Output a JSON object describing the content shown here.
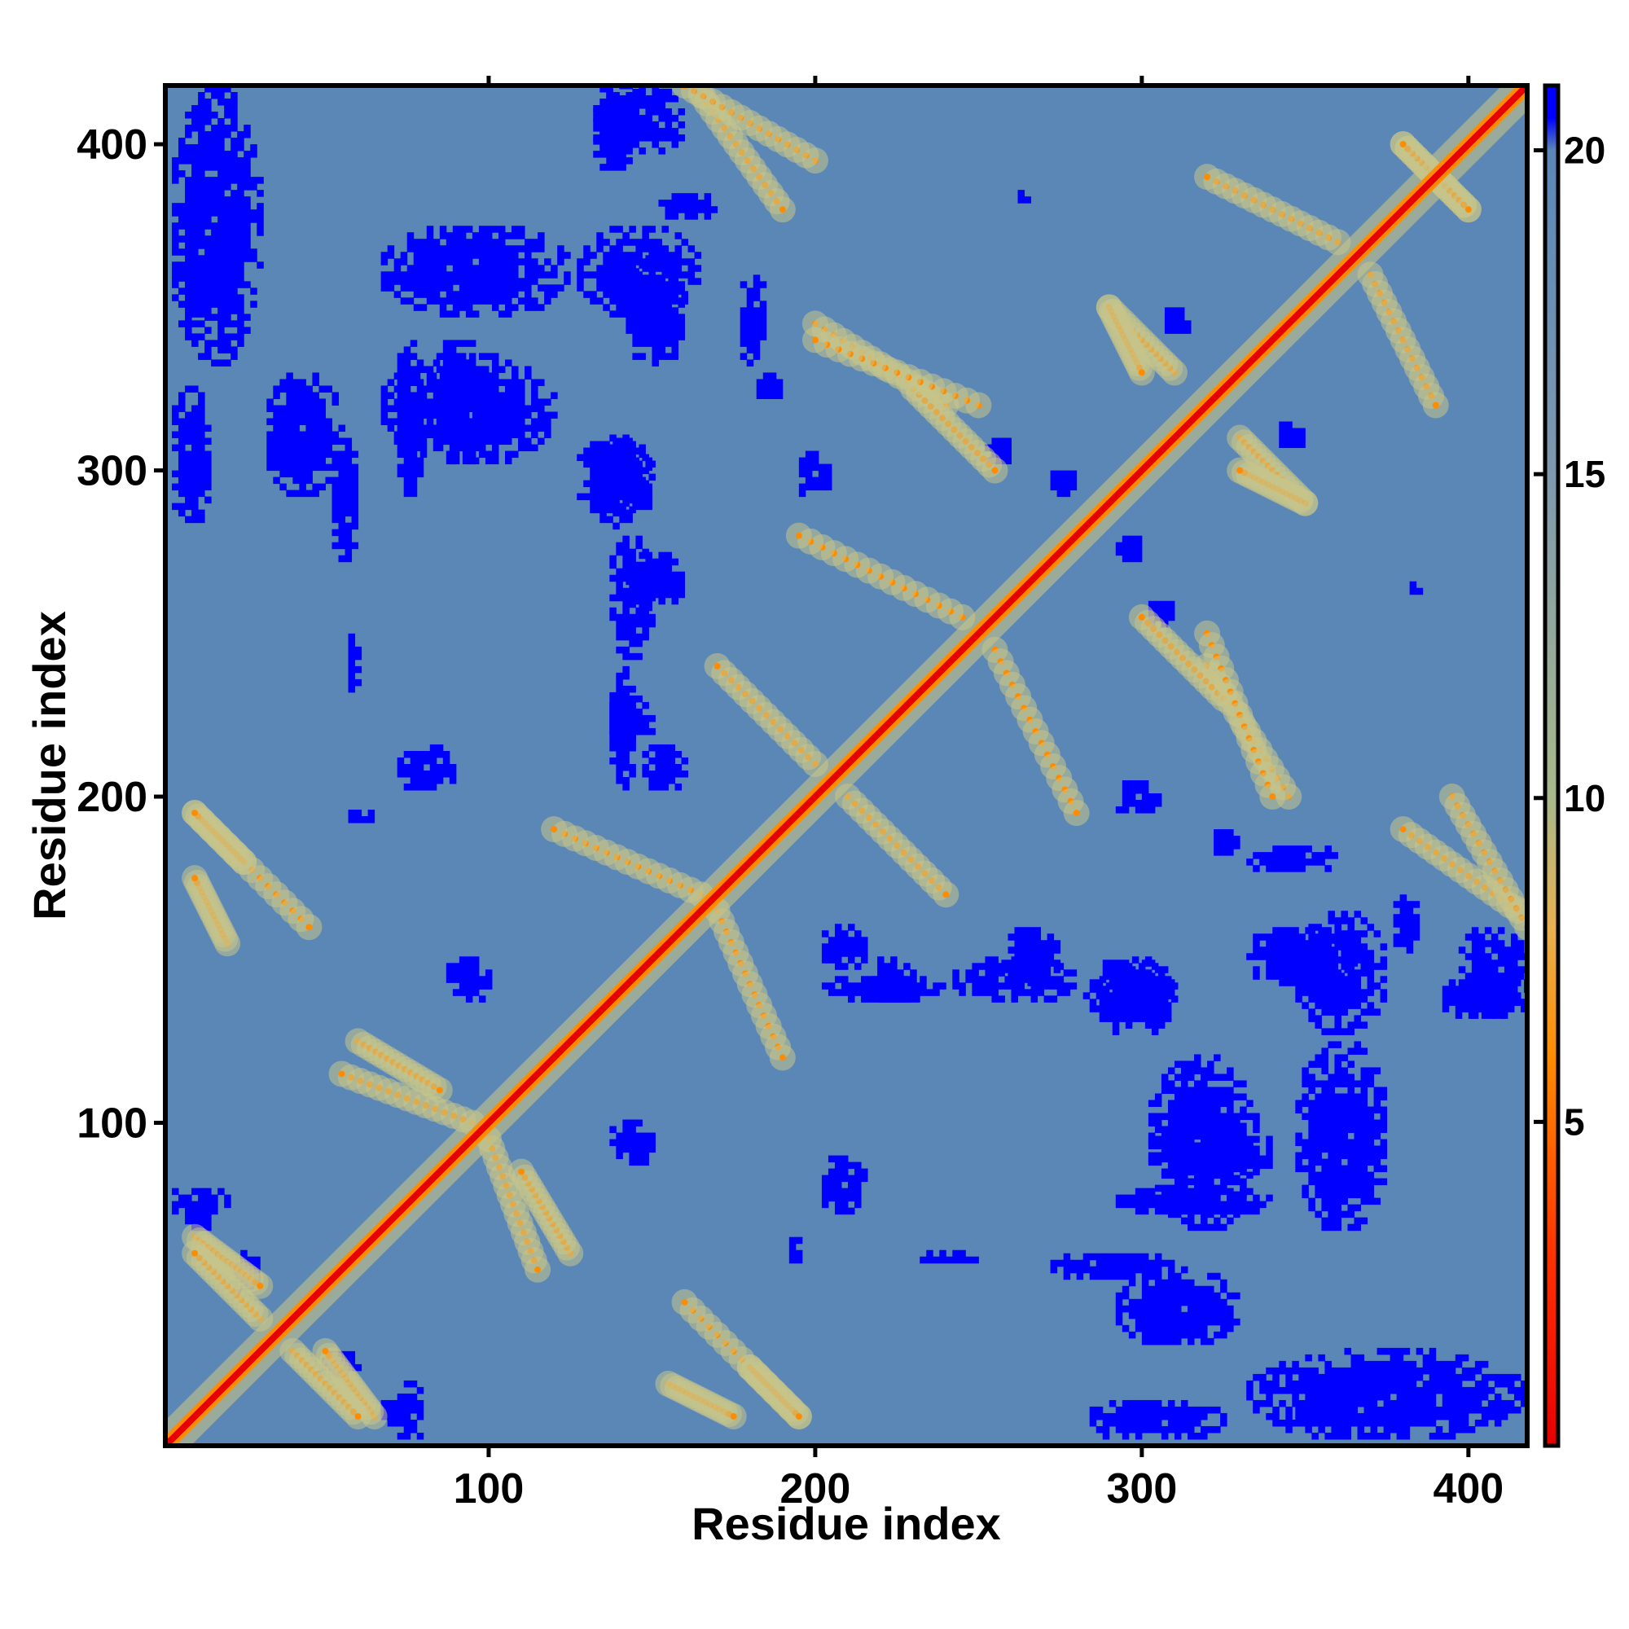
{
  "chart_data": {
    "type": "heatmap",
    "title": "",
    "xlabel": "Residue index",
    "ylabel": "Residue index",
    "xlim": [
      1,
      418
    ],
    "ylim": [
      1,
      418
    ],
    "x_ticks": [
      100,
      200,
      300,
      400
    ],
    "y_ticks": [
      100,
      200,
      300,
      400
    ],
    "colorbar": {
      "ticks": [
        5,
        10,
        15,
        20
      ],
      "range": [
        0,
        21
      ],
      "stops": [
        {
          "value": 0,
          "color": "#e60000"
        },
        {
          "value": 3,
          "color": "#ff3300"
        },
        {
          "value": 6,
          "color": "#ff8c00"
        },
        {
          "value": 8,
          "color": "#e8b050"
        },
        {
          "value": 10,
          "color": "#a8b88a"
        },
        {
          "value": 15,
          "color": "#7f99ae"
        },
        {
          "value": 20,
          "color": "#5a87b8"
        },
        {
          "value": 20.5,
          "color": "#0000ff"
        }
      ]
    },
    "colors": {
      "background": "#5b87b7",
      "far_contact": "#0000ff",
      "diagonal": "#e60000",
      "near_contact": "#ff8c00",
      "halo": "#c7c48a"
    },
    "regions_far": [
      {
        "x": [
          1,
          30
        ],
        "y": [
          330,
          418
        ]
      },
      {
        "x": [
          30,
          55
        ],
        "y": [
          290,
          330
        ]
      },
      {
        "x": [
          65,
          125
        ],
        "y": [
          345,
          375
        ]
      },
      {
        "x": [
          65,
          120
        ],
        "y": [
          300,
          335
        ]
      },
      {
        "x": [
          125,
          150
        ],
        "y": [
          285,
          310
        ]
      },
      {
        "x": [
          125,
          165
        ],
        "y": [
          345,
          375
        ]
      },
      {
        "x": [
          130,
          160
        ],
        "y": [
          395,
          418
        ]
      },
      {
        "x": [
          140,
          160
        ],
        "y": [
          255,
          275
        ]
      },
      {
        "x": [
          150,
          170
        ],
        "y": [
          375,
          385
        ]
      },
      {
        "x": [
          70,
          90
        ],
        "y": [
          200,
          215
        ]
      },
      {
        "x": [
          145,
          160
        ],
        "y": [
          200,
          215
        ]
      },
      {
        "x": [
          135,
          150
        ],
        "y": [
          215,
          230
        ]
      },
      {
        "x": [
          1,
          20
        ],
        "y": [
          70,
          80
        ]
      },
      {
        "x": [
          45,
          60
        ],
        "y": [
          20,
          30
        ]
      },
      {
        "x": [
          65,
          75
        ],
        "y": [
          5,
          15
        ]
      },
      {
        "x": [
          85,
          100
        ],
        "y": [
          135,
          150
        ]
      },
      {
        "x": [
          200,
          240
        ],
        "y": [
          135,
          145
        ]
      },
      {
        "x": [
          240,
          280
        ],
        "y": [
          135,
          150
        ]
      },
      {
        "x": [
          280,
          310
        ],
        "y": [
          130,
          150
        ]
      },
      {
        "x": [
          330,
          365
        ],
        "y": [
          140,
          160
        ]
      },
      {
        "x": [
          390,
          418
        ],
        "y": [
          130,
          145
        ]
      },
      {
        "x": [
          300,
          340
        ],
        "y": [
          80,
          100
        ]
      },
      {
        "x": [
          290,
          340
        ],
        "y": [
          70,
          80
        ]
      },
      {
        "x": [
          270,
          310
        ],
        "y": [
          50,
          60
        ]
      },
      {
        "x": [
          280,
          325
        ],
        "y": [
          1,
          15
        ]
      },
      {
        "x": [
          345,
          365
        ],
        "y": [
          5,
          15
        ]
      },
      {
        "x": [
          330,
          360
        ],
        "y": [
          175,
          185
        ]
      },
      {
        "x": [
          320,
          330
        ],
        "y": [
          180,
          190
        ]
      },
      {
        "x": [
          290,
          305
        ],
        "y": [
          193,
          205
        ]
      },
      {
        "x": [
          290,
          300
        ],
        "y": [
          270,
          280
        ]
      },
      {
        "x": [
          250,
          260
        ],
        "y": [
          300,
          310
        ]
      },
      {
        "x": [
          305,
          315
        ],
        "y": [
          340,
          350
        ]
      },
      {
        "x": [
          260,
          265
        ],
        "y": [
          380,
          385
        ]
      },
      {
        "x": [
          190,
          195
        ],
        "y": [
          55,
          65
        ]
      },
      {
        "x": [
          230,
          250
        ],
        "y": [
          55,
          60
        ]
      }
    ],
    "regions_near": [
      {
        "x": [
          10,
          30
        ],
        "y": [
          50,
          65
        ]
      },
      {
        "x": [
          40,
          60
        ],
        "y": [
          10,
          30
        ]
      },
      {
        "x": [
          60,
          85
        ],
        "y": [
          110,
          125
        ]
      },
      {
        "x": [
          100,
          115
        ],
        "y": [
          55,
          95
        ]
      },
      {
        "x": [
          10,
          45
        ],
        "y": [
          160,
          195
        ]
      },
      {
        "x": [
          155,
          175
        ],
        "y": [
          10,
          20
        ]
      },
      {
        "x": [
          180,
          195
        ],
        "y": [
          10,
          25
        ]
      },
      {
        "x": [
          210,
          240
        ],
        "y": [
          170,
          200
        ]
      },
      {
        "x": [
          200,
          240
        ],
        "y": [
          320,
          345
        ]
      },
      {
        "x": [
          230,
          255
        ],
        "y": [
          300,
          325
        ]
      },
      {
        "x": [
          255,
          280
        ],
        "y": [
          195,
          245
        ]
      },
      {
        "x": [
          320,
          340
        ],
        "y": [
          200,
          250
        ]
      },
      {
        "x": [
          330,
          350
        ],
        "y": [
          290,
          310
        ]
      },
      {
        "x": [
          370,
          390
        ],
        "y": [
          320,
          360
        ]
      },
      {
        "x": [
          380,
          400
        ],
        "y": [
          380,
          400
        ]
      },
      {
        "x": [
          165,
          190
        ],
        "y": [
          380,
          415
        ]
      },
      {
        "x": [
          170,
          190
        ],
        "y": [
          120,
          165
        ]
      },
      {
        "x": [
          290,
          300
        ],
        "y": [
          330,
          350
        ]
      },
      {
        "x": [
          395,
          418
        ],
        "y": [
          160,
          200
        ]
      }
    ]
  }
}
